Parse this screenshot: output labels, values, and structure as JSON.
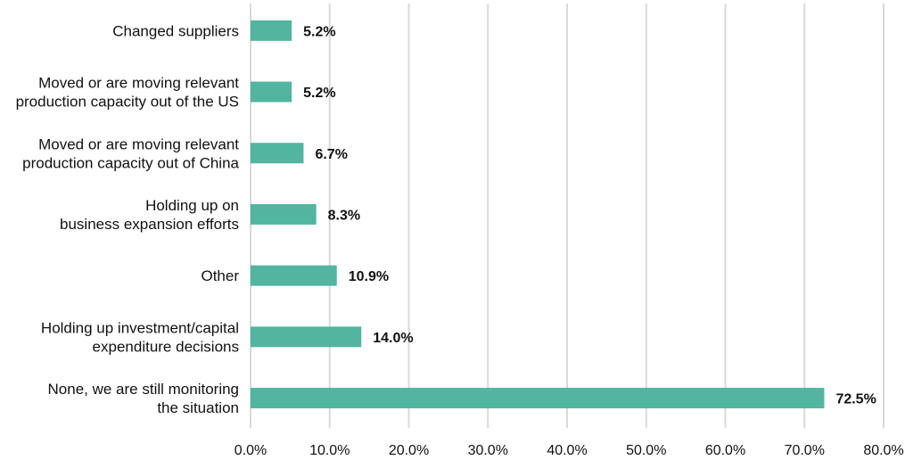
{
  "chart_data": {
    "type": "bar",
    "orientation": "horizontal",
    "categories": [
      [
        "Changed suppliers"
      ],
      [
        "Moved or are moving relevant",
        "production capacity out of the US"
      ],
      [
        "Moved or are moving relevant",
        "production capacity out of China"
      ],
      [
        "Holding up on",
        "business expansion efforts"
      ],
      [
        "Other"
      ],
      [
        "Holding up investment/capital",
        "expenditure decisions"
      ],
      [
        "None, we are still monitoring",
        "the situation"
      ]
    ],
    "values": [
      5.2,
      5.2,
      6.7,
      8.3,
      10.9,
      14.0,
      72.5
    ],
    "value_labels": [
      "5.2%",
      "5.2%",
      "6.7%",
      "8.3%",
      "10.9%",
      "14.0%",
      "72.5%"
    ],
    "xlim": [
      0,
      80
    ],
    "xticks": [
      0,
      10,
      20,
      30,
      40,
      50,
      60,
      70,
      80
    ],
    "xtick_labels": [
      "0.0%",
      "10.0%",
      "20.0%",
      "30.0%",
      "40.0%",
      "50.0%",
      "60.0%",
      "70.0%",
      "80.0%"
    ],
    "grid": "vertical",
    "bar_color": "#52b5a0",
    "grid_color": "#d9d9d9",
    "title": "",
    "xlabel": "",
    "ylabel": ""
  }
}
